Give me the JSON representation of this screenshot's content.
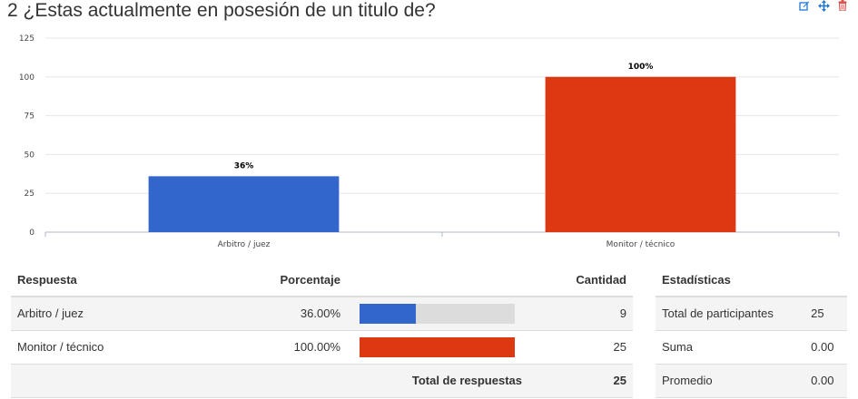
{
  "question": {
    "title": "2 ¿Estas actualmente en posesión de un titulo de?"
  },
  "toolbar": {
    "icons": [
      "edit-icon",
      "move-icon",
      "delete-icon"
    ]
  },
  "colors": {
    "blue": "#3366cc",
    "red": "#dc3912",
    "accent_icons": "#1f77d4",
    "delete": "#d9534f"
  },
  "chart_data": {
    "type": "bar",
    "categories": [
      "Arbitro / juez",
      "Monitor / técnico"
    ],
    "values": [
      36,
      100
    ],
    "data_labels": [
      "36%",
      "100%"
    ],
    "colors": [
      "#3366cc",
      "#dc3912"
    ],
    "yticks": [
      "0",
      "25",
      "50",
      "75",
      "100",
      "125"
    ],
    "ylim": [
      0,
      125
    ],
    "grid": true,
    "title": "",
    "xlabel": "",
    "ylabel": ""
  },
  "response_table": {
    "headers": {
      "answer": "Respuesta",
      "percent": "Porcentaje",
      "count": "Cantidad"
    },
    "rows": [
      {
        "answer": "Arbitro / juez",
        "percent_label": "36.00%",
        "percent": 0.36,
        "count": "9",
        "color": "#3366cc"
      },
      {
        "answer": "Monitor / técnico",
        "percent_label": "100.00%",
        "percent": 1.0,
        "count": "25",
        "color": "#dc3912"
      }
    ],
    "total_label": "Total de respuestas",
    "total_value": "25"
  },
  "stats_table": {
    "header": "Estadísticas",
    "rows": [
      {
        "label": "Total de participantes",
        "value": "25"
      },
      {
        "label": "Suma",
        "value": "0.00"
      },
      {
        "label": "Promedio",
        "value": "0.00"
      }
    ]
  }
}
